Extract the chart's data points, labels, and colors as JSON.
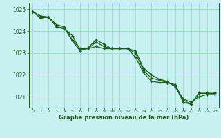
{
  "title": "Graphe pression niveau de la mer (hPa)",
  "xlabel": "Graphe pression niveau de la mer (hPa)",
  "bg_color": "#c8f0f0",
  "line_color": "#1a5c1a",
  "grid_color_h": "#e8b8b8",
  "grid_color_v": "#a8d8d8",
  "ylim": [
    1020.5,
    1025.3
  ],
  "xlim": [
    -0.5,
    23.5
  ],
  "yticks": [
    1021,
    1022,
    1023,
    1024,
    1025
  ],
  "xticks": [
    0,
    1,
    2,
    3,
    4,
    5,
    6,
    7,
    8,
    9,
    10,
    11,
    12,
    13,
    14,
    15,
    16,
    17,
    18,
    19,
    20,
    21,
    22,
    23
  ],
  "series": [
    [
      1024.9,
      1024.7,
      1024.65,
      1024.3,
      1024.2,
      1023.6,
      1023.2,
      1023.2,
      1023.5,
      1023.3,
      1023.2,
      1023.2,
      1023.2,
      1022.8,
      1022.1,
      1021.7,
      1021.65,
      1021.65,
      1021.5,
      1020.75,
      1020.65,
      1021.2,
      1021.2,
      1021.2
    ],
    [
      1024.9,
      1024.6,
      1024.65,
      1024.2,
      1024.1,
      1023.8,
      1023.15,
      1023.2,
      1023.3,
      1023.2,
      1023.2,
      1023.2,
      1023.2,
      1023.1,
      1022.3,
      1022.0,
      1021.8,
      1021.7,
      1021.45,
      1020.9,
      1020.75,
      1021.0,
      1021.1,
      1021.1
    ],
    [
      1024.9,
      1024.6,
      1024.65,
      1024.2,
      1024.15,
      1023.55,
      1023.1,
      1023.25,
      1023.6,
      1023.4,
      1023.2,
      1023.2,
      1023.2,
      1023.0,
      1022.2,
      1021.85,
      1021.75,
      1021.65,
      1021.55,
      1020.85,
      1020.65,
      1021.15,
      1021.15,
      1021.15
    ]
  ]
}
